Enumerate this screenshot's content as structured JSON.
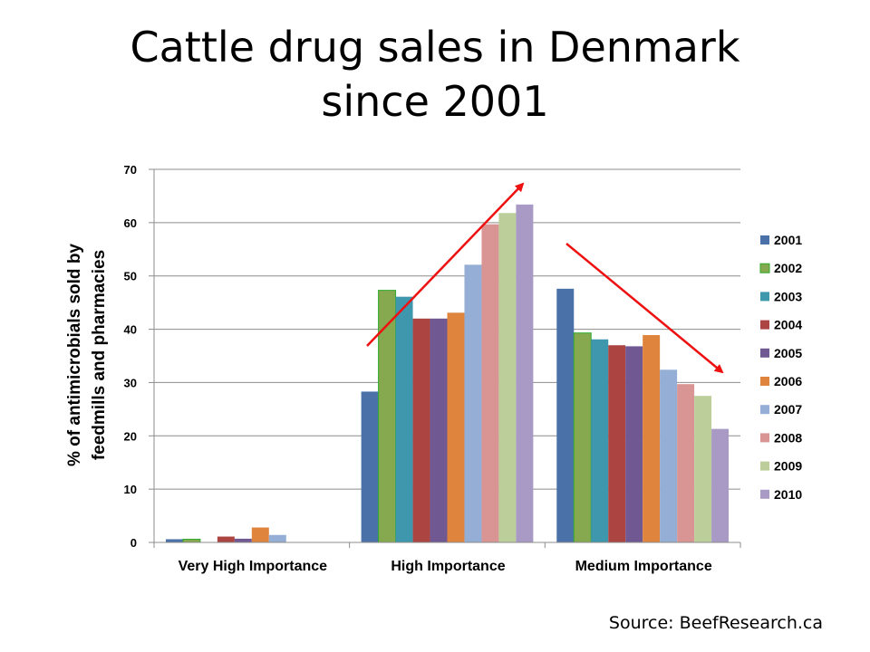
{
  "slide": {
    "title_line1": "Cattle drug sales in Denmark",
    "title_line2": "since 2001",
    "source": "Source: BeefResearch.ca"
  },
  "chart_data": {
    "type": "bar",
    "ylabel_line1": "% of antimicrobials sold by",
    "ylabel_line2": "feedmills and pharmacies",
    "xlabel": "",
    "ylim": [
      0,
      70
    ],
    "yticks": [
      0,
      10,
      20,
      30,
      40,
      50,
      60,
      70
    ],
    "categories": [
      "Very High Importance",
      "High Importance",
      "Medium Importance"
    ],
    "series": [
      {
        "name": "2001",
        "color": "#4a72a8",
        "values": [
          0.6,
          28.3,
          47.6
        ]
      },
      {
        "name": "2002",
        "color": "#86a84e",
        "stroke": "#2eaa2e",
        "values": [
          0.6,
          47.3,
          39.3
        ]
      },
      {
        "name": "2003",
        "color": "#3f97ae",
        "values": [
          0,
          46.1,
          38.1
        ]
      },
      {
        "name": "2004",
        "color": "#ac4542",
        "values": [
          1.1,
          42.0,
          37.0
        ]
      },
      {
        "name": "2005",
        "color": "#705892",
        "values": [
          0.7,
          42.0,
          36.8
        ]
      },
      {
        "name": "2006",
        "color": "#df843d",
        "values": [
          2.8,
          43.1,
          38.9
        ]
      },
      {
        "name": "2007",
        "color": "#94aed6",
        "values": [
          1.4,
          52.1,
          32.4
        ]
      },
      {
        "name": "2008",
        "color": "#d89593",
        "values": [
          0,
          59.7,
          29.7
        ]
      },
      {
        "name": "2009",
        "color": "#bccf9a",
        "values": [
          0,
          61.8,
          27.5
        ]
      },
      {
        "name": "2010",
        "color": "#a89ac4",
        "values": [
          0,
          63.4,
          21.3
        ]
      }
    ],
    "legend_position": "right",
    "grid": true,
    "annotations": [
      {
        "type": "arrow",
        "color": "#ee1111",
        "description": "upward trend over High Importance"
      },
      {
        "type": "arrow",
        "color": "#ee1111",
        "description": "downward trend over Medium Importance"
      }
    ]
  }
}
